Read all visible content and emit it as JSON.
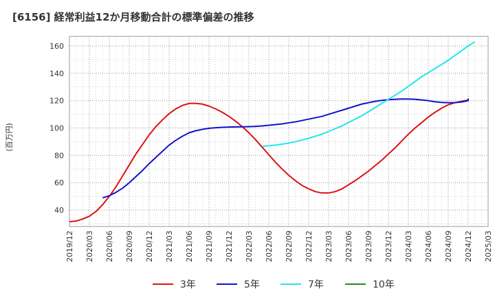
{
  "chart_data": {
    "type": "line",
    "title": "[6156]  経常利益12か月移動合計の標準偏差の推移",
    "ylabel": "(百万円)",
    "xlabel": "",
    "ylim": [
      28,
      167
    ],
    "yticks": [
      40,
      60,
      80,
      100,
      120,
      140,
      160
    ],
    "xlim": [
      "2019-12",
      "2025-03"
    ],
    "xtick_labels": [
      "2019/12",
      "2020/03",
      "2020/06",
      "2020/09",
      "2020/12",
      "2021/03",
      "2021/06",
      "2021/09",
      "2021/12",
      "2022/03",
      "2022/06",
      "2022/09",
      "2022/12",
      "2023/03",
      "2023/06",
      "2023/09",
      "2023/12",
      "2024/03",
      "2024/06",
      "2024/09",
      "2024/12",
      "2025/03"
    ],
    "grid": true,
    "legend_position": "bottom",
    "series": [
      {
        "name": "3年",
        "color": "#dd1111",
        "points": [
          [
            "2019-12",
            31.5
          ],
          [
            "2020-01",
            32
          ],
          [
            "2020-02",
            33.5
          ],
          [
            "2020-03",
            35.5
          ],
          [
            "2020-04",
            39
          ],
          [
            "2020-05",
            44
          ],
          [
            "2020-06",
            50
          ],
          [
            "2020-07",
            57
          ],
          [
            "2020-08",
            65
          ],
          [
            "2020-09",
            73
          ],
          [
            "2020-10",
            81
          ],
          [
            "2020-11",
            88
          ],
          [
            "2020-12",
            95
          ],
          [
            "2021-01",
            101
          ],
          [
            "2021-02",
            106
          ],
          [
            "2021-03",
            110.5
          ],
          [
            "2021-04",
            114
          ],
          [
            "2021-05",
            116.5
          ],
          [
            "2021-06",
            118
          ],
          [
            "2021-07",
            118
          ],
          [
            "2021-08",
            117.5
          ],
          [
            "2021-09",
            116
          ],
          [
            "2021-10",
            114
          ],
          [
            "2021-11",
            111.5
          ],
          [
            "2021-12",
            108.5
          ],
          [
            "2022-01",
            105
          ],
          [
            "2022-02",
            101
          ],
          [
            "2022-03",
            96.5
          ],
          [
            "2022-04",
            91.5
          ],
          [
            "2022-05",
            86
          ],
          [
            "2022-06",
            80.5
          ],
          [
            "2022-07",
            75
          ],
          [
            "2022-08",
            70
          ],
          [
            "2022-09",
            65.5
          ],
          [
            "2022-10",
            61.5
          ],
          [
            "2022-11",
            58
          ],
          [
            "2022-12",
            55.5
          ],
          [
            "2023-01",
            53.5
          ],
          [
            "2023-02",
            52.5
          ],
          [
            "2023-03",
            52.5
          ],
          [
            "2023-04",
            53.5
          ],
          [
            "2023-05",
            55.5
          ],
          [
            "2023-06",
            58.5
          ],
          [
            "2023-07",
            61.5
          ],
          [
            "2023-08",
            65
          ],
          [
            "2023-09",
            68.5
          ],
          [
            "2023-10",
            72.5
          ],
          [
            "2023-11",
            76.5
          ],
          [
            "2023-12",
            81
          ],
          [
            "2024-01",
            85.5
          ],
          [
            "2024-02",
            90.5
          ],
          [
            "2024-03",
            95.5
          ],
          [
            "2024-04",
            100
          ],
          [
            "2024-05",
            104
          ],
          [
            "2024-06",
            108
          ],
          [
            "2024-07",
            111.5
          ],
          [
            "2024-08",
            114.5
          ],
          [
            "2024-09",
            117
          ],
          [
            "2024-10",
            118.5
          ],
          [
            "2024-11",
            119.5
          ],
          [
            "2024-12",
            120.5
          ]
        ]
      },
      {
        "name": "5年",
        "color": "#1111cc",
        "points": [
          [
            "2020-05",
            49
          ],
          [
            "2020-06",
            50.5
          ],
          [
            "2020-07",
            53
          ],
          [
            "2020-08",
            56
          ],
          [
            "2020-09",
            60
          ],
          [
            "2020-10",
            64.5
          ],
          [
            "2020-11",
            69
          ],
          [
            "2020-12",
            74
          ],
          [
            "2021-01",
            78.5
          ],
          [
            "2021-02",
            83
          ],
          [
            "2021-03",
            87.5
          ],
          [
            "2021-04",
            91
          ],
          [
            "2021-05",
            94
          ],
          [
            "2021-06",
            96.5
          ],
          [
            "2021-07",
            98
          ],
          [
            "2021-08",
            99
          ],
          [
            "2021-09",
            99.8
          ],
          [
            "2021-10",
            100.2
          ],
          [
            "2021-11",
            100.5
          ],
          [
            "2021-12",
            100.7
          ],
          [
            "2022-01",
            100.8
          ],
          [
            "2022-02",
            100.9
          ],
          [
            "2022-03",
            101
          ],
          [
            "2022-04",
            101.2
          ],
          [
            "2022-05",
            101.5
          ],
          [
            "2022-06",
            102
          ],
          [
            "2022-07",
            102.5
          ],
          [
            "2022-08",
            103
          ],
          [
            "2022-09",
            103.8
          ],
          [
            "2022-10",
            104.5
          ],
          [
            "2022-11",
            105.5
          ],
          [
            "2022-12",
            106.5
          ],
          [
            "2023-01",
            107.5
          ],
          [
            "2023-02",
            108.5
          ],
          [
            "2023-03",
            110
          ],
          [
            "2023-04",
            111.5
          ],
          [
            "2023-05",
            113
          ],
          [
            "2023-06",
            114.5
          ],
          [
            "2023-07",
            116
          ],
          [
            "2023-08",
            117.5
          ],
          [
            "2023-09",
            118.5
          ],
          [
            "2023-10",
            119.5
          ],
          [
            "2023-11",
            120.2
          ],
          [
            "2023-12",
            120.7
          ],
          [
            "2024-01",
            121
          ],
          [
            "2024-02",
            121.2
          ],
          [
            "2024-03",
            121.2
          ],
          [
            "2024-04",
            121
          ],
          [
            "2024-05",
            120.5
          ],
          [
            "2024-06",
            120
          ],
          [
            "2024-07",
            119.2
          ],
          [
            "2024-08",
            118.7
          ],
          [
            "2024-09",
            118.5
          ],
          [
            "2024-10",
            118.6
          ],
          [
            "2024-11",
            119
          ],
          [
            "2024-12",
            120
          ],
          [
            "2024-12",
            121.5
          ]
        ]
      },
      {
        "name": "7年",
        "color": "#22e5ee",
        "points": [
          [
            "2022-05",
            86.5
          ],
          [
            "2022-06",
            87
          ],
          [
            "2022-07",
            87.5
          ],
          [
            "2022-08",
            88.2
          ],
          [
            "2022-09",
            89
          ],
          [
            "2022-10",
            90
          ],
          [
            "2022-11",
            91.2
          ],
          [
            "2022-12",
            92.5
          ],
          [
            "2023-01",
            94
          ],
          [
            "2023-02",
            95.5
          ],
          [
            "2023-03",
            97.5
          ],
          [
            "2023-04",
            99.5
          ],
          [
            "2023-05",
            101.5
          ],
          [
            "2023-06",
            104
          ],
          [
            "2023-07",
            106.5
          ],
          [
            "2023-08",
            109
          ],
          [
            "2023-09",
            112
          ],
          [
            "2023-10",
            115
          ],
          [
            "2023-11",
            118
          ],
          [
            "2023-12",
            121
          ],
          [
            "2024-01",
            124
          ],
          [
            "2024-02",
            127
          ],
          [
            "2024-03",
            130.5
          ],
          [
            "2024-04",
            134
          ],
          [
            "2024-05",
            137.5
          ],
          [
            "2024-06",
            140.5
          ],
          [
            "2024-07",
            143.5
          ],
          [
            "2024-08",
            146.5
          ],
          [
            "2024-09",
            149.5
          ],
          [
            "2024-10",
            153
          ],
          [
            "2024-11",
            156.5
          ],
          [
            "2024-12",
            160
          ],
          [
            "2025-01",
            163
          ]
        ]
      },
      {
        "name": "10年",
        "color": "#228822",
        "points": []
      }
    ]
  }
}
